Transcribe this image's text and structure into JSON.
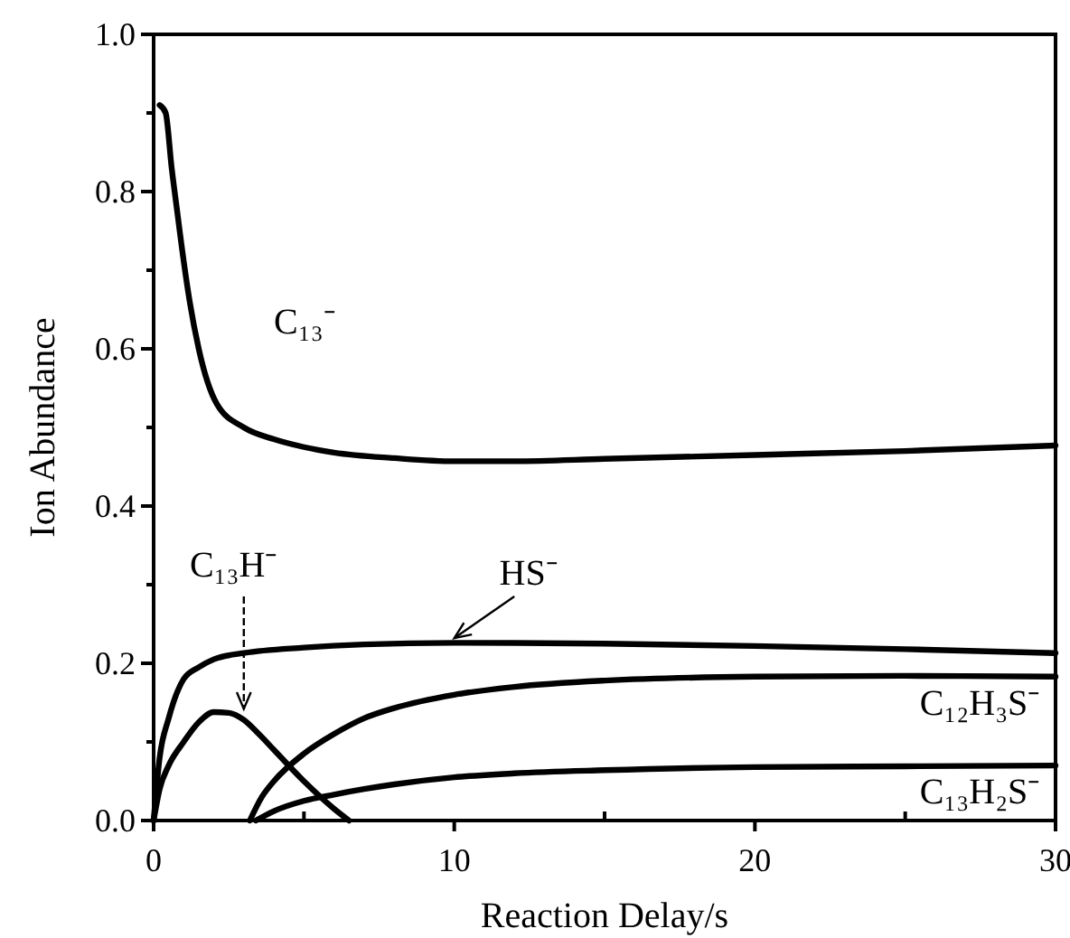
{
  "chart_data": {
    "type": "line",
    "xlabel": "Reaction Delay/s",
    "ylabel": "Ion Abundance",
    "xlim": [
      0,
      30
    ],
    "ylim": [
      0,
      1
    ],
    "xticks": [
      0,
      {
        "value": 5,
        "label": null
      },
      10,
      {
        "value": 15,
        "label": null
      },
      20,
      {
        "value": 25,
        "label": null
      },
      30
    ],
    "yticks": [
      {
        "value": 0,
        "label": "0.0"
      },
      {
        "value": 0.1,
        "label": null
      },
      {
        "value": 0.2,
        "label": "0.2"
      },
      {
        "value": 0.3,
        "label": null
      },
      {
        "value": 0.4,
        "label": "0.4"
      },
      {
        "value": 0.5,
        "label": null
      },
      {
        "value": 0.6,
        "label": "0.6"
      },
      {
        "value": 0.7,
        "label": null
      },
      {
        "value": 0.8,
        "label": "0.8"
      },
      {
        "value": 0.9,
        "label": null
      },
      {
        "value": 1,
        "label": "1.0"
      }
    ],
    "grid": false,
    "marker": "none",
    "line_style": "solid",
    "series": [
      {
        "name": "C₁₃⁻",
        "color": "#000000",
        "x": [
          0.2,
          0.4,
          0.6,
          0.8,
          0.9,
          1.2,
          1.5,
          2.1,
          3,
          4,
          5,
          6,
          8,
          10,
          12,
          15,
          20,
          25,
          30
        ],
        "values": [
          0.91,
          0.9,
          0.83,
          0.77,
          0.74,
          0.66,
          0.6,
          0.53,
          0.5,
          0.485,
          0.475,
          0.468,
          0.461,
          0.457,
          0.457,
          0.46,
          0.465,
          0.47,
          0.477
        ]
      },
      {
        "name": "HS⁻",
        "color": "#000000",
        "x": [
          0,
          0.2,
          0.5,
          1,
          1.5,
          2,
          3,
          5,
          7,
          10,
          15,
          20,
          25,
          30
        ],
        "values": [
          0,
          0.08,
          0.13,
          0.18,
          0.195,
          0.205,
          0.213,
          0.22,
          0.224,
          0.226,
          0.225,
          0.222,
          0.218,
          0.213
        ]
      },
      {
        "name": "C₁₃H⁻",
        "color": "#000000",
        "x": [
          0,
          0.2,
          0.5,
          1,
          1.5,
          2,
          2.5,
          3,
          3.5,
          4,
          5,
          6,
          6.5
        ],
        "values": [
          0,
          0.04,
          0.07,
          0.1,
          0.125,
          0.138,
          0.137,
          0.128,
          0.11,
          0.09,
          0.05,
          0.015,
          0
        ]
      },
      {
        "name": "C₁₂H₃S⁻",
        "color": "#000000",
        "x": [
          3.2,
          3.6,
          4,
          5,
          6,
          7,
          8,
          10,
          12,
          15,
          20,
          25,
          30
        ],
        "values": [
          0,
          0.03,
          0.05,
          0.085,
          0.11,
          0.13,
          0.143,
          0.16,
          0.17,
          0.178,
          0.183,
          0.184,
          0.183
        ]
      },
      {
        "name": "C₁₃H₂S⁻",
        "color": "#000000",
        "x": [
          3.4,
          4,
          5,
          6,
          7,
          8,
          10,
          12,
          15,
          20,
          25,
          30
        ],
        "values": [
          0,
          0.012,
          0.025,
          0.033,
          0.04,
          0.046,
          0.055,
          0.06,
          0.064,
          0.068,
          0.069,
          0.07
        ]
      }
    ]
  }
}
